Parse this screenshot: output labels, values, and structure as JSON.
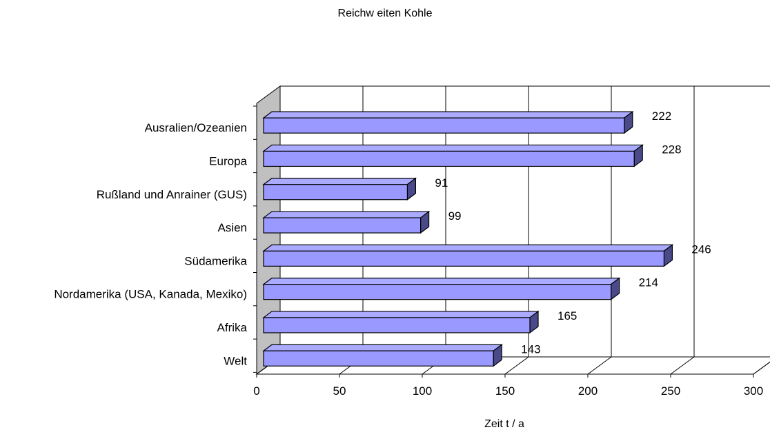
{
  "chart_data": {
    "type": "bar",
    "orientation": "horizontal",
    "title": "Reichw eiten Kohle",
    "xlabel": "Zeit t / a",
    "ylabel": "",
    "categories": [
      "Ausralien/Ozeanien",
      "Europa",
      "Rußland und Anrainer (GUS)",
      "Asien",
      "Südamerika",
      "Nordamerika (USA, Kanada, Mexiko)",
      "Afrika",
      "Welt"
    ],
    "values": [
      222,
      228,
      91,
      99,
      246,
      214,
      165,
      143
    ],
    "data_labels": [
      "222",
      "228",
      "91",
      "99",
      "246",
      "214",
      "165",
      "143"
    ],
    "xlim": [
      0,
      300
    ],
    "x_ticks": [
      "0",
      "50",
      "100",
      "150",
      "200",
      "250",
      "300"
    ],
    "grid": true,
    "legend": "none",
    "colors": {
      "bar_front": "#9999ff",
      "bar_top": "#aaaaff",
      "bar_side": "#4a4a8a",
      "side_wall": "#c0c0c0",
      "gridline": "#000000"
    }
  }
}
